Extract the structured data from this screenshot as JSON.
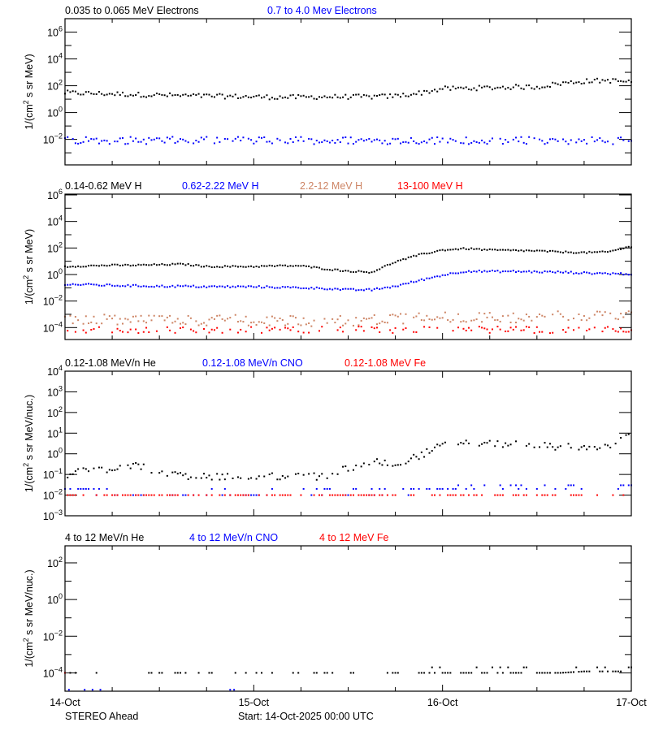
{
  "chart_data": [
    {
      "type": "scatter",
      "ylabel": "1/(cm^2 s sr MeV)",
      "yscale": "log",
      "ylim": [
        0.000126,
        10000000.0
      ],
      "yticks": [
        0.01,
        1,
        100,
        10000,
        1000000
      ],
      "legend": [
        {
          "name": "0.035 to 0.065 MeV Electrons",
          "color": "#000000"
        },
        {
          "name": "0.7 to 4.0 Mev Electrons",
          "color": "#0000ff"
        }
      ],
      "x": [
        "2025-10-14T00:00",
        "2025-10-14T03:00",
        "2025-10-14T06:00",
        "2025-10-14T09:00",
        "2025-10-14T12:00",
        "2025-10-14T15:00",
        "2025-10-14T18:00",
        "2025-10-14T21:00",
        "2025-10-15T00:00",
        "2025-10-15T03:00",
        "2025-10-15T06:00",
        "2025-10-15T09:00",
        "2025-10-15T12:00",
        "2025-10-15T15:00",
        "2025-10-15T18:00",
        "2025-10-15T21:00",
        "2025-10-16T00:00",
        "2025-10-16T03:00",
        "2025-10-16T06:00",
        "2025-10-16T09:00",
        "2025-10-16T12:00",
        "2025-10-16T15:00",
        "2025-10-16T18:00",
        "2025-10-16T21:00",
        "2025-10-17T00:00"
      ],
      "series": [
        {
          "name": "0.035 to 0.065 MeV Electrons",
          "color": "#000000",
          "values": [
            30,
            27,
            25,
            22,
            20,
            18,
            17,
            16,
            15,
            14,
            14,
            15,
            15,
            15,
            17,
            28,
            60,
            65,
            70,
            80,
            80,
            150,
            215,
            250,
            190
          ]
        },
        {
          "name": "0.7 to 4.0 Mev Electrons",
          "color": "#0000ff",
          "values": [
            0.01,
            0.01,
            0.01,
            0.01,
            0.01,
            0.01,
            0.01,
            0.01,
            0.01,
            0.01,
            0.01,
            0.01,
            0.01,
            0.01,
            0.01,
            0.01,
            0.01,
            0.01,
            0.01,
            0.01,
            0.01,
            0.01,
            0.01,
            0.01,
            0.01
          ]
        }
      ]
    },
    {
      "type": "scatter",
      "ylabel": "1/(cm^2 s sr MeV)",
      "yscale": "log",
      "ylim": [
        1.26e-05,
        1150000.0
      ],
      "yticks": [
        0.0001,
        0.01,
        1,
        100,
        10000,
        1000000
      ],
      "legend": [
        {
          "name": "0.14-0.62 MeV H",
          "color": "#000000"
        },
        {
          "name": "0.62-2.22 MeV H",
          "color": "#0000ff"
        },
        {
          "name": "2.2-12 MeV H",
          "color": "#cd8464"
        },
        {
          "name": "13-100 MeV H",
          "color": "#ff0000"
        }
      ],
      "x": [
        "2025-10-14T00:00",
        "2025-10-14T03:00",
        "2025-10-14T06:00",
        "2025-10-14T09:00",
        "2025-10-14T12:00",
        "2025-10-14T15:00",
        "2025-10-14T18:00",
        "2025-10-14T21:00",
        "2025-10-15T00:00",
        "2025-10-15T03:00",
        "2025-10-15T06:00",
        "2025-10-15T09:00",
        "2025-10-15T12:00",
        "2025-10-15T15:00",
        "2025-10-15T18:00",
        "2025-10-15T21:00",
        "2025-10-16T00:00",
        "2025-10-16T03:00",
        "2025-10-16T06:00",
        "2025-10-16T09:00",
        "2025-10-16T12:00",
        "2025-10-16T15:00",
        "2025-10-16T18:00",
        "2025-10-16T21:00",
        "2025-10-17T00:00"
      ],
      "series": [
        {
          "name": "0.14-0.62 MeV H",
          "color": "#000000",
          "values": [
            4,
            4.5,
            5,
            5,
            5.5,
            6,
            4,
            4,
            4,
            4.5,
            4.5,
            2.7,
            1.8,
            1.5,
            9,
            30,
            70,
            90,
            70,
            65,
            60,
            50,
            45,
            50,
            130
          ]
        },
        {
          "name": "0.62-2.22 MeV H",
          "color": "#0000ff",
          "values": [
            0.18,
            0.17,
            0.15,
            0.14,
            0.13,
            0.13,
            0.12,
            0.12,
            0.12,
            0.11,
            0.1,
            0.09,
            0.07,
            0.07,
            0.13,
            0.35,
            0.9,
            1.8,
            1.7,
            1.7,
            1.6,
            1.5,
            1.3,
            1.2,
            1.1
          ]
        },
        {
          "name": "2.2-12 MeV H",
          "color": "#cd8464",
          "values": [
            0.0011,
            0.001,
            0.001,
            0.001,
            0.0009,
            0.0009,
            0.0009,
            0.0009,
            0.0009,
            0.0009,
            0.0008,
            0.0008,
            0.0008,
            0.0009,
            0.0011,
            0.0014,
            0.0016,
            0.0016,
            0.0015,
            0.0015,
            0.0016,
            0.0017,
            0.0018,
            0.002,
            0.002
          ]
        },
        {
          "name": "13-100 MeV H",
          "color": "#ff0000",
          "values": [
            0.00012,
            0.00012,
            0.00012,
            0.00012,
            0.00012,
            0.00012,
            0.00012,
            0.00012,
            0.00012,
            0.00012,
            0.00012,
            0.00012,
            0.00012,
            0.00012,
            0.00012,
            0.00012,
            0.00012,
            0.00012,
            0.00012,
            0.00012,
            0.00012,
            0.00012,
            0.00012,
            0.00012,
            0.00012
          ]
        }
      ]
    },
    {
      "type": "scatter",
      "ylabel": "1/(cm^2 s sr MeV/nuc.)",
      "yscale": "log",
      "ylim": [
        0.001,
        10000
      ],
      "yticks": [
        0.001,
        0.01,
        0.1,
        1,
        10,
        100,
        1000,
        10000
      ],
      "legend": [
        {
          "name": "0.12-1.08 MeV/n He",
          "color": "#000000"
        },
        {
          "name": "0.12-1.08 MeV/n CNO",
          "color": "#0000ff"
        },
        {
          "name": "0.12-1.08 MeV Fe",
          "color": "#ff0000"
        }
      ],
      "x": [
        "2025-10-14T00:00",
        "2025-10-14T03:00",
        "2025-10-14T06:00",
        "2025-10-14T09:00",
        "2025-10-14T12:00",
        "2025-10-14T15:00",
        "2025-10-14T18:00",
        "2025-10-14T21:00",
        "2025-10-15T00:00",
        "2025-10-15T03:00",
        "2025-10-15T06:00",
        "2025-10-15T09:00",
        "2025-10-15T12:00",
        "2025-10-15T15:00",
        "2025-10-15T18:00",
        "2025-10-15T21:00",
        "2025-10-16T00:00",
        "2025-10-16T03:00",
        "2025-10-16T06:00",
        "2025-10-16T09:00",
        "2025-10-16T12:00",
        "2025-10-16T15:00",
        "2025-10-16T18:00",
        "2025-10-16T21:00",
        "2025-10-17T00:00"
      ],
      "series": [
        {
          "name": "0.12-1.08 MeV/n He",
          "color": "#000000",
          "values": [
            0.1,
            0.15,
            0.2,
            0.3,
            0.12,
            0.08,
            0.08,
            0.08,
            0.08,
            0.08,
            0.08,
            0.08,
            0.2,
            0.4,
            0.35,
            0.8,
            2.5,
            4,
            3,
            3,
            2.5,
            2.2,
            1.8,
            2.5,
            7
          ]
        },
        {
          "name": "0.12-1.08 MeV/n CNO",
          "color": "#0000ff",
          "values": [
            0.02,
            0.02,
            0.015,
            0.012,
            0.012,
            0.012,
            0.012,
            0.012,
            0.012,
            0.015,
            0.015,
            0.015,
            0.015,
            0.015,
            0.015,
            0.018,
            0.02,
            0.025,
            0.025,
            0.025,
            0.025,
            0.025,
            0.025,
            0.025,
            0.03
          ]
        },
        {
          "name": "0.12-1.08 MeV Fe",
          "color": "#ff0000",
          "values": [
            0.01,
            0.01,
            0.01,
            0.01,
            0.01,
            0.01,
            0.01,
            0.01,
            0.01,
            0.01,
            0.01,
            0.01,
            0.01,
            0.01,
            0.01,
            0.01,
            0.01,
            0.01,
            0.01,
            0.01,
            0.01,
            0.01,
            0.01,
            0.01,
            0.01
          ]
        }
      ]
    },
    {
      "type": "scatter",
      "ylabel": "1/(cm^2 s sr MeV/nuc.)",
      "yscale": "log",
      "ylim": [
        1e-05,
        850
      ],
      "yticks": [
        0.0001,
        0.01,
        1,
        100
      ],
      "legend": [
        {
          "name": "4 to 12 MeV/n He",
          "color": "#000000"
        },
        {
          "name": "4 to 12 MeV/n CNO",
          "color": "#0000ff"
        },
        {
          "name": "4 to 12 MeV Fe",
          "color": "#ff0000"
        }
      ],
      "x": [
        "2025-10-14T00:00",
        "2025-10-14T03:00",
        "2025-10-14T06:00",
        "2025-10-14T09:00",
        "2025-10-14T12:00",
        "2025-10-14T15:00",
        "2025-10-14T18:00",
        "2025-10-14T21:00",
        "2025-10-15T00:00",
        "2025-10-15T03:00",
        "2025-10-15T06:00",
        "2025-10-15T09:00",
        "2025-10-15T12:00",
        "2025-10-15T15:00",
        "2025-10-15T18:00",
        "2025-10-15T21:00",
        "2025-10-16T00:00",
        "2025-10-16T03:00",
        "2025-10-16T06:00",
        "2025-10-16T09:00",
        "2025-10-16T12:00",
        "2025-10-16T15:00",
        "2025-10-16T18:00",
        "2025-10-16T21:00",
        "2025-10-17T00:00"
      ],
      "series": [
        {
          "name": "4 to 12 MeV/n He",
          "color": "#000000",
          "values": [
            0.0001,
            0.0001,
            0.0001,
            0.0001,
            0.0001,
            0.0001,
            0.0001,
            0.0001,
            0.0001,
            0.0001,
            0.0001,
            0.0001,
            0.0001,
            0.0001,
            0.0001,
            0.0001,
            0.0001,
            0.0001,
            0.0001,
            0.0001,
            0.0001,
            0.0001,
            0.00012,
            0.00012,
            0.00012
          ]
        },
        {
          "name": "4 to 12 MeV/n CNO",
          "color": "#0000ff",
          "points": [
            [
              "2025-10-14T00:30",
              1.2e-05
            ],
            [
              "2025-10-14T02:30",
              1.2e-05
            ],
            [
              "2025-10-14T03:30",
              1.2e-05
            ],
            [
              "2025-10-14T04:30",
              1.2e-05
            ],
            [
              "2025-10-14T21:00",
              1.2e-05
            ],
            [
              "2025-10-14T21:30",
              1.2e-05
            ]
          ]
        },
        {
          "name": "4 to 12 MeV Fe",
          "color": "#ff0000",
          "points": [
            [
              "2025-10-14T00:00",
              0.0001
            ]
          ]
        }
      ]
    }
  ],
  "xaxis": {
    "range": [
      "2025-10-14T00:00",
      "2025-10-17T00:00"
    ],
    "tick_labels": [
      "14-Oct",
      "15-Oct",
      "16-Oct",
      "17-Oct"
    ],
    "minor_tick_hours": 6
  },
  "footer": {
    "spacecraft": "STEREO Ahead",
    "start": "Start: 14-Oct-2025 00:00 UTC"
  }
}
